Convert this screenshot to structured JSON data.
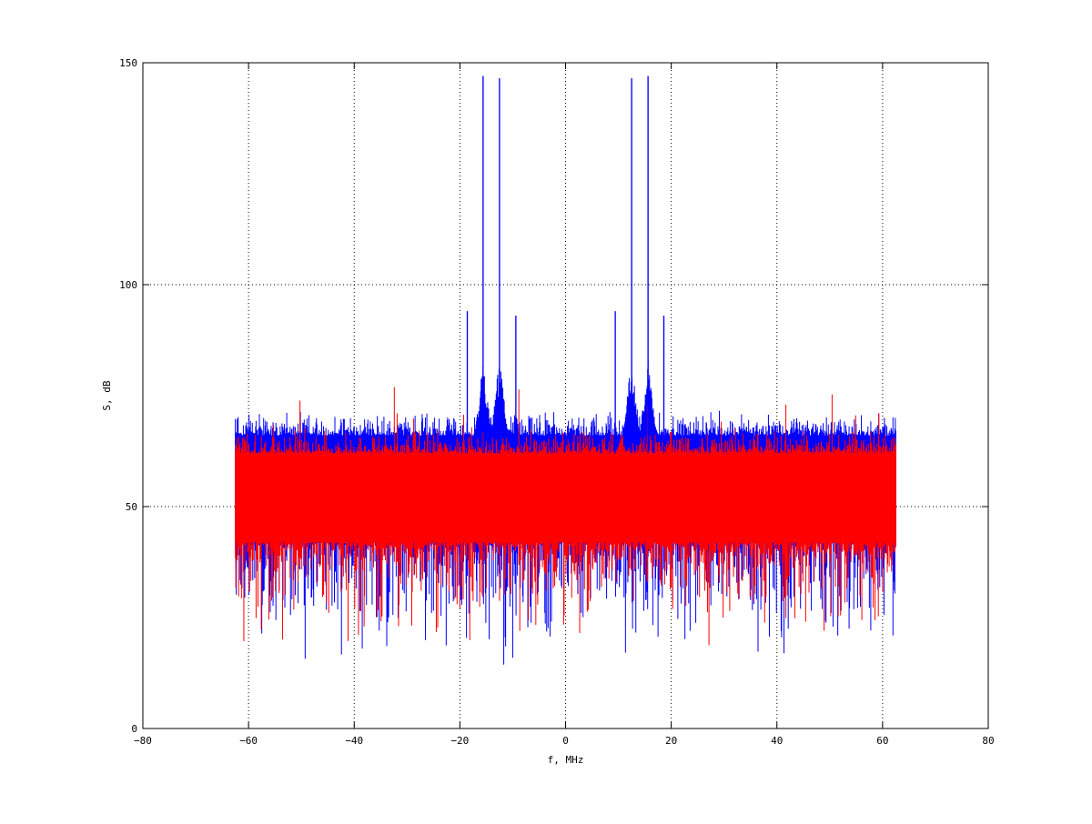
{
  "chart_data": {
    "type": "line",
    "title": "",
    "xlabel": "f, MHz",
    "ylabel": "S, dB",
    "xlim": [
      -80,
      80
    ],
    "ylim": [
      0,
      150
    ],
    "x_ticks": [
      -80,
      -60,
      -40,
      -20,
      0,
      20,
      40,
      60,
      80
    ],
    "y_ticks": [
      0,
      50,
      100,
      150
    ],
    "x_tick_labels": [
      "−80",
      "−60",
      "−40",
      "−20",
      "0",
      "20",
      "40",
      "60",
      "80"
    ],
    "y_tick_labels": [
      "0",
      "50",
      "100",
      "150"
    ],
    "grid": true,
    "grid_style": "dotted",
    "legend": "none",
    "x_range_data": [
      -62.5,
      62.5
    ],
    "series": [
      {
        "color": "#0000ff",
        "noise_floor_db": 55,
        "noise_band_db": [
          42,
          66
        ],
        "min_db": 12.5,
        "spikes": [
          {
            "x": -15.6,
            "y": 147
          },
          {
            "x": -12.5,
            "y": 146.5
          },
          {
            "x": 12.5,
            "y": 146.5
          },
          {
            "x": 15.6,
            "y": 147
          },
          {
            "x": -18.6,
            "y": 94
          },
          {
            "x": -9.4,
            "y": 93
          },
          {
            "x": 9.4,
            "y": 94
          },
          {
            "x": 18.6,
            "y": 93
          }
        ],
        "sidebands": [
          {
            "x": -15.6,
            "peak": 84
          },
          {
            "x": -12.5,
            "peak": 84
          },
          {
            "x": 12.5,
            "peak": 84
          },
          {
            "x": 15.6,
            "peak": 84
          }
        ]
      },
      {
        "color": "#ff0000",
        "noise_floor_db": 53,
        "noise_band_db": [
          42,
          62
        ],
        "min_db": 18,
        "max_db": 78,
        "spikes": []
      }
    ]
  }
}
